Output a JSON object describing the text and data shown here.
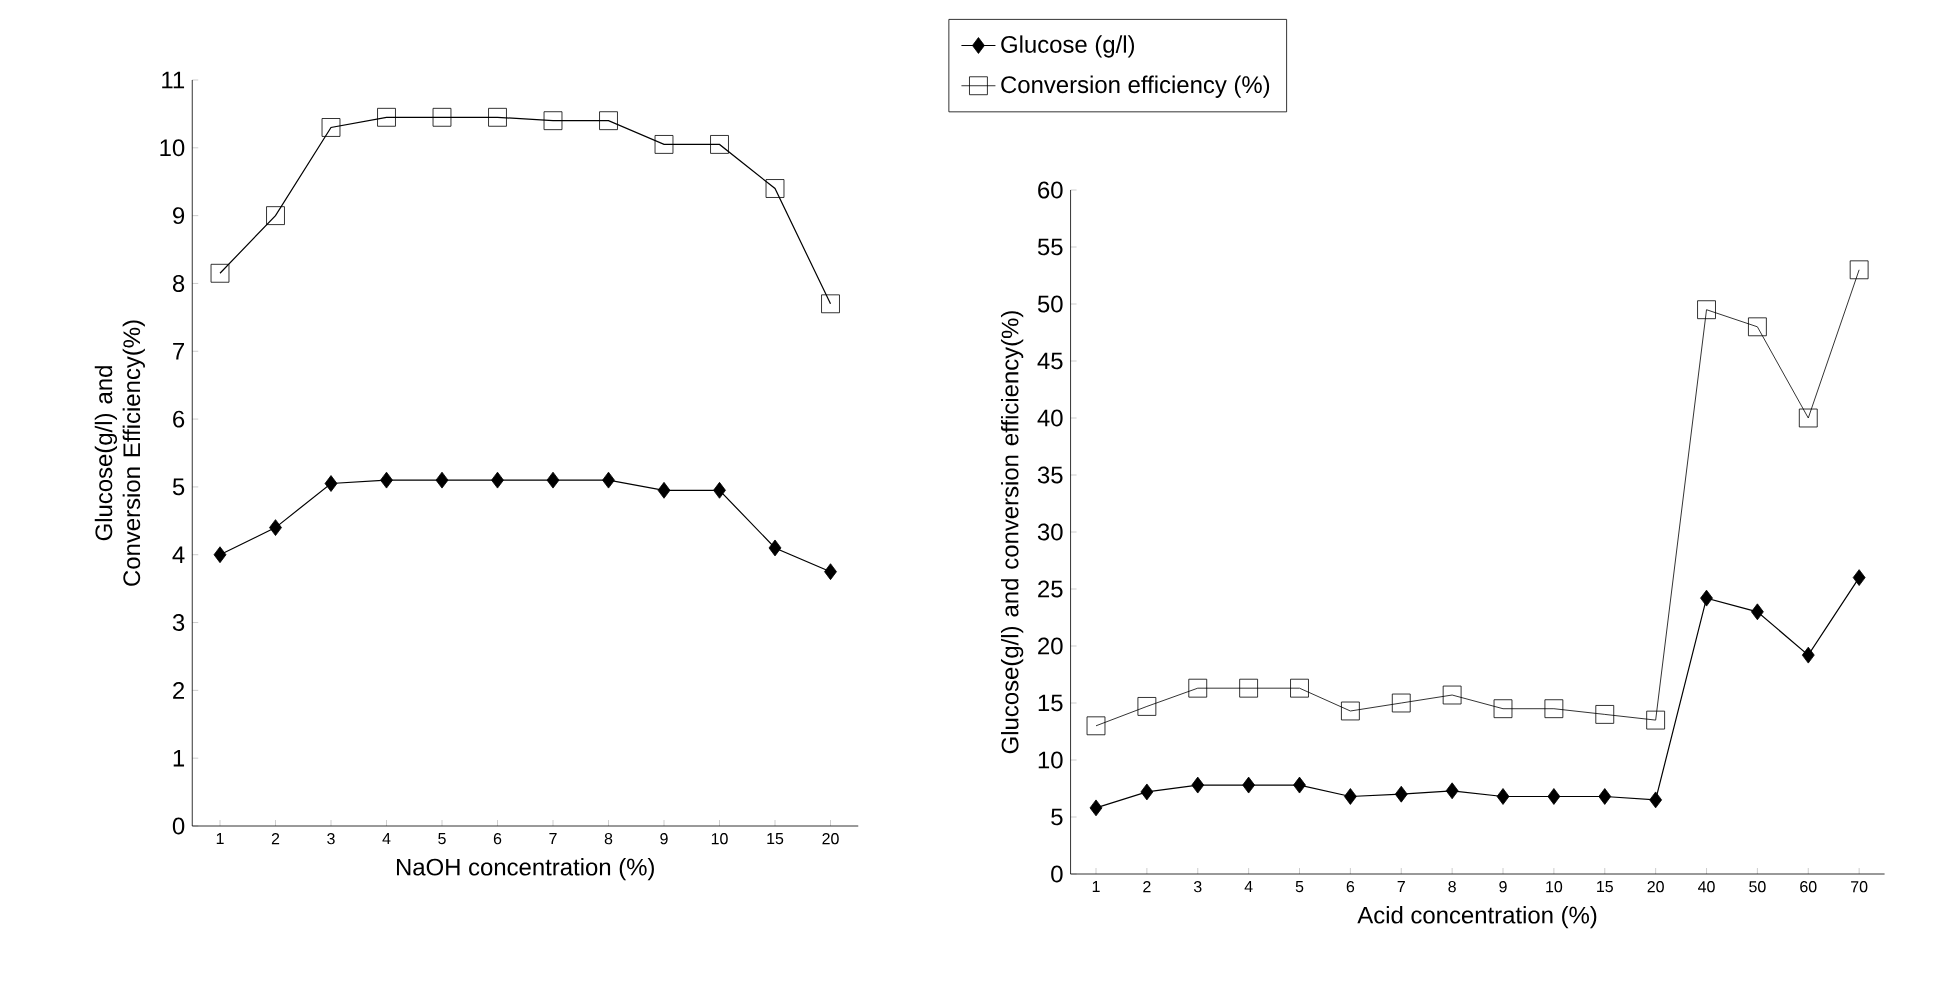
{
  "chart_data": [
    {
      "type": "line",
      "xlabel": "NaOH concentration (%)",
      "ylabel": "Glucose(g/l) and Conversion Efficiency(%)",
      "categories": [
        "1",
        "2",
        "3",
        "4",
        "5",
        "6",
        "7",
        "8",
        "9",
        "10",
        "15",
        "20"
      ],
      "ylim": [
        0,
        11
      ],
      "yticks": [
        0,
        1,
        2,
        3,
        4,
        5,
        6,
        7,
        8,
        9,
        10,
        11
      ],
      "grid": false,
      "legend": false,
      "series": [
        {
          "color": "#000000",
          "marker": "diamond",
          "values": [
            4.0,
            4.4,
            5.05,
            5.1,
            5.1,
            5.1,
            5.1,
            5.1,
            4.95,
            4.95,
            4.1,
            3.75
          ]
        },
        {
          "color": "#000000",
          "marker": "square",
          "values": [
            8.15,
            9.0,
            10.3,
            10.45,
            10.45,
            10.45,
            10.4,
            10.4,
            10.05,
            10.05,
            9.4,
            7.7
          ]
        }
      ]
    },
    {
      "type": "line",
      "xlabel": "Acid concentration (%)",
      "ylabel": "Glucose(g/l) and conversion efficiency(%)",
      "categories": [
        "1",
        "2",
        "3",
        "4",
        "5",
        "6",
        "7",
        "8",
        "9",
        "10",
        "15",
        "20",
        "40",
        "50",
        "60",
        "70"
      ],
      "ylim": [
        0,
        60
      ],
      "yticks": [
        0,
        5,
        10,
        15,
        20,
        25,
        30,
        35,
        40,
        45,
        50,
        55,
        60
      ],
      "grid": false,
      "legend": "top left",
      "series": [
        {
          "name": "Glucose (g/l)",
          "color": "#000000",
          "marker": "diamond",
          "values": [
            5.8,
            7.2,
            7.8,
            7.8,
            7.8,
            6.8,
            7.0,
            7.3,
            6.8,
            6.8,
            6.8,
            6.5,
            24.2,
            23,
            19.2,
            26
          ]
        },
        {
          "name": "Conversion efficiency (%)",
          "color": "#000000",
          "marker": "square",
          "values": [
            13,
            14.7,
            16.3,
            16.3,
            16.3,
            14.3,
            15,
            15.7,
            14.5,
            14.5,
            14,
            13.5,
            49.5,
            48,
            40,
            53
          ]
        }
      ]
    }
  ]
}
